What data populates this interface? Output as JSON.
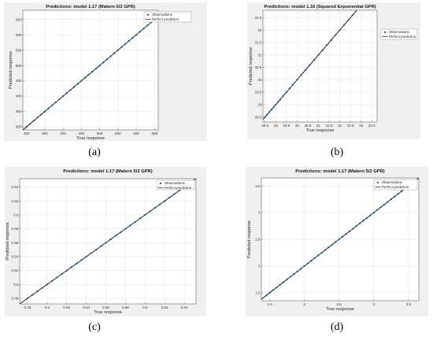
{
  "chart_data": [
    {
      "type": "scatter",
      "title": "Predictions: model 1.17 (Matern 5/2 GPR)",
      "xlabel": "True response",
      "ylabel": "Predicted response",
      "xlim": [
        290,
        660
      ],
      "ylim": [
        290,
        680
      ],
      "xticks": [
        "300",
        "350",
        "400",
        "450",
        "500",
        "550",
        "600",
        "650"
      ],
      "yticks": [
        "300",
        "350",
        "400",
        "450",
        "500",
        "550",
        "600",
        "650"
      ],
      "series": [
        {
          "name": "Observations",
          "x": [
            300,
            310,
            320,
            330,
            340,
            350,
            360,
            370,
            380,
            390,
            400,
            410,
            420,
            430,
            440,
            450,
            460,
            470,
            480,
            490,
            500,
            510,
            520,
            530,
            540,
            550,
            560,
            570,
            580,
            590,
            600,
            610,
            620,
            630,
            640,
            650
          ],
          "y": [
            300,
            310,
            320,
            330,
            340,
            350,
            360,
            370,
            380,
            390,
            400,
            410,
            420,
            430,
            440,
            450,
            460,
            470,
            480,
            490,
            500,
            510,
            520,
            530,
            540,
            550,
            560,
            570,
            580,
            590,
            600,
            610,
            620,
            630,
            640,
            650
          ]
        },
        {
          "name": "Perfect prediction",
          "line": [
            [
              290,
              290
            ],
            [
              660,
              660
            ]
          ]
        }
      ],
      "legend": [
        "Observations",
        "Perfect prediction"
      ],
      "legend_position": "outside-right",
      "caption": "(a)"
    },
    {
      "type": "scatter",
      "title": "Predictions: model 1.16 (Squared Exponential GPR)",
      "xlabel": "True response",
      "ylabel": "Predicted response",
      "xlim": [
        28.4,
        33.75
      ],
      "ylim": [
        28.3,
        32.8
      ],
      "xticks": [
        "28.5",
        "29",
        "29.5",
        "30",
        "30.5",
        "31",
        "31.5",
        "32",
        "32.5",
        "33",
        "33.5"
      ],
      "yticks": [
        "28.5",
        "29",
        "29.5",
        "30",
        "30.5",
        "31",
        "31.5",
        "32",
        "32.5"
      ],
      "series": [
        {
          "name": "Observations",
          "x": [
            28.5,
            28.6,
            28.7,
            28.8,
            28.9,
            29.0,
            29.1,
            29.2,
            29.35,
            29.5,
            29.65,
            29.8,
            30.0,
            30.2,
            30.4,
            30.6,
            30.8,
            31.0,
            31.2,
            31.4,
            31.6,
            31.8,
            32.0,
            32.2,
            32.4,
            32.6
          ],
          "y": [
            28.5,
            28.6,
            28.7,
            28.8,
            28.9,
            29.0,
            29.1,
            29.2,
            29.35,
            29.5,
            29.65,
            29.8,
            30.0,
            30.2,
            30.4,
            30.6,
            30.8,
            31.0,
            31.2,
            31.4,
            31.6,
            31.8,
            32.0,
            32.2,
            32.4,
            32.6
          ]
        },
        {
          "name": "Perfect prediction",
          "line": [
            [
              28.4,
              28.4
            ],
            [
              33.75,
              33.75
            ]
          ]
        }
      ],
      "legend": [
        "Observations",
        "Perfect prediction"
      ],
      "legend_position": "top-right",
      "caption": "(b)"
    },
    {
      "type": "scatter",
      "title": "Predictions: model 1.17 (Matern 5/2 GPR)",
      "xlabel": "True response",
      "ylabel": "Predicted response",
      "xlim": [
        0.472,
        0.652
      ],
      "ylim": [
        0.472,
        0.652
      ],
      "xticks": [
        "0.48",
        "0.5",
        "0.52",
        "0.54",
        "0.56",
        "0.58",
        "0.6",
        "0.62",
        "0.64"
      ],
      "yticks": [
        "0.48",
        "0.5",
        "0.52",
        "0.54",
        "0.56",
        "0.58",
        "0.6",
        "0.62",
        "0.64"
      ],
      "series": [
        {
          "name": "Observations",
          "x": [
            0.48,
            0.485,
            0.49,
            0.495,
            0.5,
            0.505,
            0.51,
            0.515,
            0.52,
            0.525,
            0.53,
            0.535,
            0.54,
            0.545,
            0.55,
            0.555,
            0.56,
            0.565,
            0.57,
            0.575,
            0.58,
            0.585,
            0.59,
            0.595,
            0.6,
            0.605,
            0.61,
            0.615,
            0.62,
            0.625,
            0.63,
            0.635,
            0.64,
            0.645
          ],
          "y": [
            0.48,
            0.485,
            0.49,
            0.495,
            0.5,
            0.505,
            0.51,
            0.515,
            0.52,
            0.525,
            0.53,
            0.535,
            0.54,
            0.545,
            0.55,
            0.555,
            0.56,
            0.565,
            0.57,
            0.575,
            0.58,
            0.585,
            0.59,
            0.595,
            0.6,
            0.605,
            0.61,
            0.615,
            0.62,
            0.625,
            0.63,
            0.635,
            0.64,
            0.645
          ]
        },
        {
          "name": "Perfect prediction",
          "line": [
            [
              0.472,
              0.472
            ],
            [
              0.652,
              0.652
            ]
          ]
        }
      ],
      "legend": [
        "Observations",
        "Perfect prediction"
      ],
      "legend_position": "top-right",
      "caption": "(c)"
    },
    {
      "type": "scatter",
      "title": "Predictions: model 1.17 (Matern 5/2 GPR)",
      "xlabel": "True response",
      "ylabel": "Predicted response",
      "xlim": [
        1.38,
        3.65
      ],
      "ylim": [
        1.35,
        3.65
      ],
      "xticks": [
        "1.5",
        "2",
        "2.5",
        "3",
        "3.5"
      ],
      "yticks": [
        "1.5",
        "2",
        "2.5",
        "3",
        "3.5"
      ],
      "series": [
        {
          "name": "Observations",
          "x": [
            1.45,
            1.5,
            1.55,
            1.6,
            1.65,
            1.7,
            1.75,
            1.8,
            1.85,
            1.9,
            1.95,
            2.0,
            2.05,
            2.1,
            2.15,
            2.2,
            2.25,
            2.3,
            2.35,
            2.4,
            2.45,
            2.5,
            2.55,
            2.6,
            2.65,
            2.7,
            2.75,
            2.8,
            2.85,
            2.9,
            2.95,
            3.0,
            3.05,
            3.1,
            3.15,
            3.2,
            3.25,
            3.3,
            3.35,
            3.4,
            3.45,
            3.5,
            3.55
          ],
          "y": [
            1.45,
            1.5,
            1.55,
            1.6,
            1.65,
            1.7,
            1.75,
            1.8,
            1.85,
            1.9,
            1.95,
            2.0,
            2.05,
            2.1,
            2.15,
            2.2,
            2.25,
            2.3,
            2.35,
            2.4,
            2.45,
            2.5,
            2.55,
            2.6,
            2.65,
            2.7,
            2.75,
            2.8,
            2.85,
            2.9,
            2.95,
            3.0,
            3.05,
            3.1,
            3.15,
            3.2,
            3.25,
            3.3,
            3.35,
            3.4,
            3.45,
            3.5,
            3.55
          ]
        },
        {
          "name": "Perfect prediction",
          "line": [
            [
              1.38,
              1.38
            ],
            [
              3.65,
              3.65
            ]
          ]
        }
      ],
      "legend": [
        "Observations",
        "Perfect prediction"
      ],
      "legend_position": "top-right",
      "caption": "(d)"
    }
  ],
  "colors": {
    "figure_bg": "#f0f0f0",
    "plot_bg": "#ffffff",
    "grid": "#e3e3e3",
    "marker": "#1f5f8b",
    "perfect_line": "#111111",
    "axis": "#444444"
  }
}
